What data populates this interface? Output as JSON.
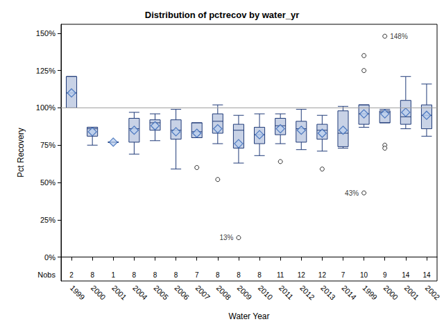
{
  "chart_data": {
    "type": "boxplot",
    "title": "Distribution of pctrecov by water_yr",
    "x_label": "Water Year",
    "y_label": "Pct Recovery",
    "categories": [
      "1999",
      "2000",
      "2001",
      "2004",
      "2005",
      "2006",
      "2007",
      "2008",
      "2009",
      "2010",
      "2011",
      "2012",
      "2013",
      "2014",
      "1999",
      "2000",
      "2001",
      "2002"
    ],
    "values": [
      [
        100,
        100,
        110,
        121,
        121
      ],
      [
        75,
        81,
        86,
        87,
        87
      ],
      [
        77,
        77,
        77,
        77,
        77
      ],
      [
        69,
        77,
        86,
        93,
        97
      ],
      [
        78,
        85,
        90,
        92,
        96
      ],
      [
        59,
        79,
        85,
        92,
        99
      ],
      [
        80,
        80,
        84,
        90,
        90
      ],
      [
        76,
        83,
        91,
        96,
        102
      ],
      [
        63,
        73,
        85,
        89,
        95
      ],
      [
        68,
        76,
        82,
        87,
        96
      ],
      [
        76,
        82,
        88,
        93,
        96
      ],
      [
        72,
        77,
        86,
        91,
        99
      ],
      [
        71,
        79,
        85,
        89,
        95
      ],
      [
        73,
        74,
        83,
        98,
        101
      ],
      [
        87,
        89,
        96,
        102,
        102
      ],
      [
        90,
        90,
        97,
        98,
        99
      ],
      [
        86,
        89,
        94,
        105,
        121
      ],
      [
        81,
        86,
        95,
        102,
        116
      ]
    ],
    "means": [
      110,
      84,
      77,
      85,
      88,
      84,
      83,
      86,
      76,
      82,
      86,
      85,
      83,
      85,
      96,
      96,
      97,
      95
    ],
    "outliers": [
      [],
      [],
      [],
      [],
      [],
      [],
      [
        60
      ],
      [
        52
      ],
      [
        {
          "value": 13,
          "label": "13%"
        }
      ],
      [],
      [
        64
      ],
      [],
      [
        59
      ],
      [],
      [
        125,
        135,
        {
          "value": 43,
          "label": "43%"
        }
      ],
      [
        {
          "value": 148,
          "label": "148%"
        },
        75,
        73
      ],
      [],
      []
    ],
    "nobs_label": "Nobs",
    "nobs": [
      2,
      8,
      1,
      8,
      8,
      8,
      7,
      8,
      8,
      8,
      11,
      12,
      12,
      7,
      10,
      9,
      14,
      14
    ],
    "reference_line": 100,
    "ylim": [
      -16,
      156
    ],
    "yticks": [
      {
        "value": 0,
        "label": "0%"
      },
      {
        "value": 25,
        "label": "25%"
      },
      {
        "value": 50,
        "label": "50%"
      },
      {
        "value": 75,
        "label": "75%"
      },
      {
        "value": 100,
        "label": "100%"
      },
      {
        "value": 125,
        "label": "125%"
      },
      {
        "value": 150,
        "label": "150%"
      }
    ],
    "color": "#c8d2e6",
    "grid": false
  }
}
